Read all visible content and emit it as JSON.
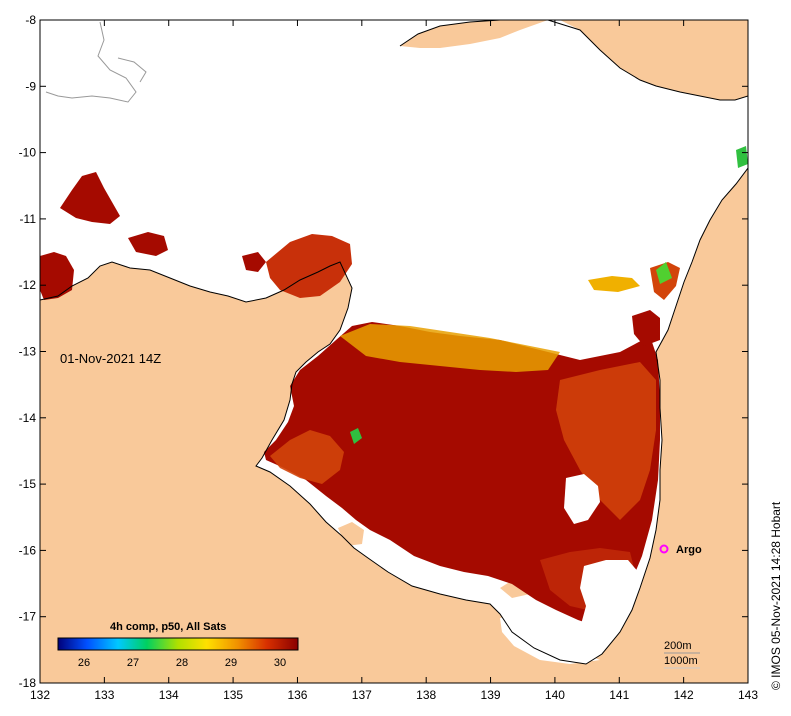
{
  "map": {
    "lon_ticks": [
      "132",
      "133",
      "134",
      "135",
      "136",
      "137",
      "138",
      "139",
      "140",
      "141",
      "142",
      "143"
    ],
    "lat_ticks": [
      "-8",
      "-9",
      "-10",
      "-11",
      "-12",
      "-13",
      "-14",
      "-15",
      "-16",
      "-17",
      "-18"
    ],
    "timestamp": "01-Nov-2021 14Z",
    "argo_label": "Argo",
    "colorbar": {
      "title": "4h comp, p50, All Sats",
      "tick_labels": [
        "26",
        "27",
        "28",
        "29",
        "30"
      ]
    },
    "contours": {
      "line1": "200m",
      "line2": "1000m"
    },
    "credit": "© IMOS 05-Nov-2021 14:28 Hobart",
    "colors": {
      "land": "#f9c99a",
      "no_data": "#ffffff",
      "sst_hot": "#a50a00",
      "sst_warm": "#d2440a",
      "sst_mid": "#e8a000",
      "argo_marker": "#ff00ff"
    }
  }
}
